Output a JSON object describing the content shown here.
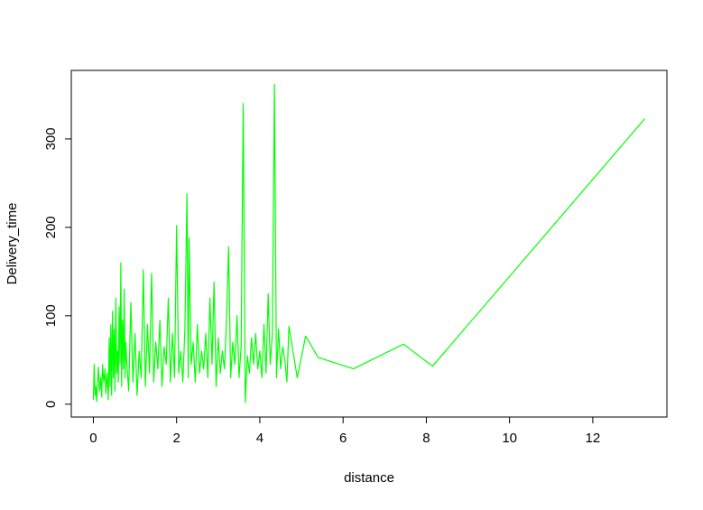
{
  "chart_data": {
    "type": "line",
    "title": "",
    "xlabel": "distance",
    "ylabel": "Delivery_time",
    "xlim": [
      -0.53,
      13.78
    ],
    "ylim": [
      -14.5,
      377.5
    ],
    "x_ticks": [
      0,
      2,
      4,
      6,
      8,
      10,
      12
    ],
    "x_tick_labels": [
      "0",
      "2",
      "4",
      "6",
      "8",
      "10",
      "12"
    ],
    "y_ticks": [
      0,
      100,
      200,
      300
    ],
    "y_tick_labels": [
      "0",
      "100",
      "200",
      "300"
    ],
    "grid": false,
    "legend": "none",
    "series": [
      {
        "color": "#00ff00",
        "x": [
          0.0,
          0.02,
          0.04,
          0.06,
          0.08,
          0.12,
          0.15,
          0.18,
          0.2,
          0.22,
          0.25,
          0.28,
          0.3,
          0.33,
          0.36,
          0.38,
          0.4,
          0.42,
          0.44,
          0.46,
          0.48,
          0.5,
          0.52,
          0.54,
          0.56,
          0.58,
          0.6,
          0.62,
          0.64,
          0.66,
          0.68,
          0.7,
          0.72,
          0.74,
          0.76,
          0.78,
          0.8,
          0.85,
          0.9,
          0.95,
          1.0,
          1.05,
          1.1,
          1.15,
          1.2,
          1.25,
          1.3,
          1.35,
          1.4,
          1.45,
          1.5,
          1.55,
          1.6,
          1.65,
          1.7,
          1.75,
          1.8,
          1.85,
          1.9,
          1.95,
          2.0,
          2.05,
          2.1,
          2.15,
          2.2,
          2.25,
          2.28,
          2.3,
          2.35,
          2.4,
          2.45,
          2.5,
          2.55,
          2.6,
          2.65,
          2.7,
          2.75,
          2.8,
          2.85,
          2.9,
          2.95,
          3.0,
          3.05,
          3.1,
          3.15,
          3.2,
          3.25,
          3.3,
          3.35,
          3.4,
          3.45,
          3.5,
          3.55,
          3.6,
          3.65,
          3.7,
          3.75,
          3.8,
          3.85,
          3.9,
          3.95,
          4.0,
          4.05,
          4.1,
          4.15,
          4.2,
          4.25,
          4.3,
          4.35,
          4.4,
          4.45,
          4.5,
          4.55,
          4.6,
          4.65,
          4.7,
          4.9,
          5.1,
          5.4,
          6.25,
          7.45,
          8.15,
          13.25
        ],
        "y": [
          5,
          45,
          10,
          20,
          3,
          42,
          15,
          30,
          8,
          45,
          25,
          40,
          12,
          35,
          5,
          75,
          20,
          90,
          10,
          105,
          30,
          85,
          15,
          120,
          35,
          60,
          25,
          110,
          45,
          160,
          20,
          95,
          40,
          130,
          30,
          70,
          50,
          15,
          115,
          25,
          80,
          10,
          60,
          30,
          152,
          20,
          90,
          35,
          148,
          25,
          70,
          40,
          95,
          20,
          65,
          45,
          120,
          25,
          80,
          30,
          202,
          35,
          60,
          25,
          85,
          238,
          30,
          188,
          45,
          70,
          25,
          90,
          35,
          60,
          40,
          80,
          30,
          120,
          45,
          138,
          20,
          75,
          35,
          60,
          40,
          95,
          178,
          30,
          70,
          45,
          100,
          30,
          65,
          340,
          2,
          55,
          35,
          75,
          45,
          80,
          40,
          60,
          30,
          90,
          35,
          125,
          45,
          80,
          362,
          30,
          85,
          40,
          65,
          50,
          25,
          88,
          30,
          77,
          53,
          40,
          68,
          43,
          323
        ]
      }
    ]
  }
}
